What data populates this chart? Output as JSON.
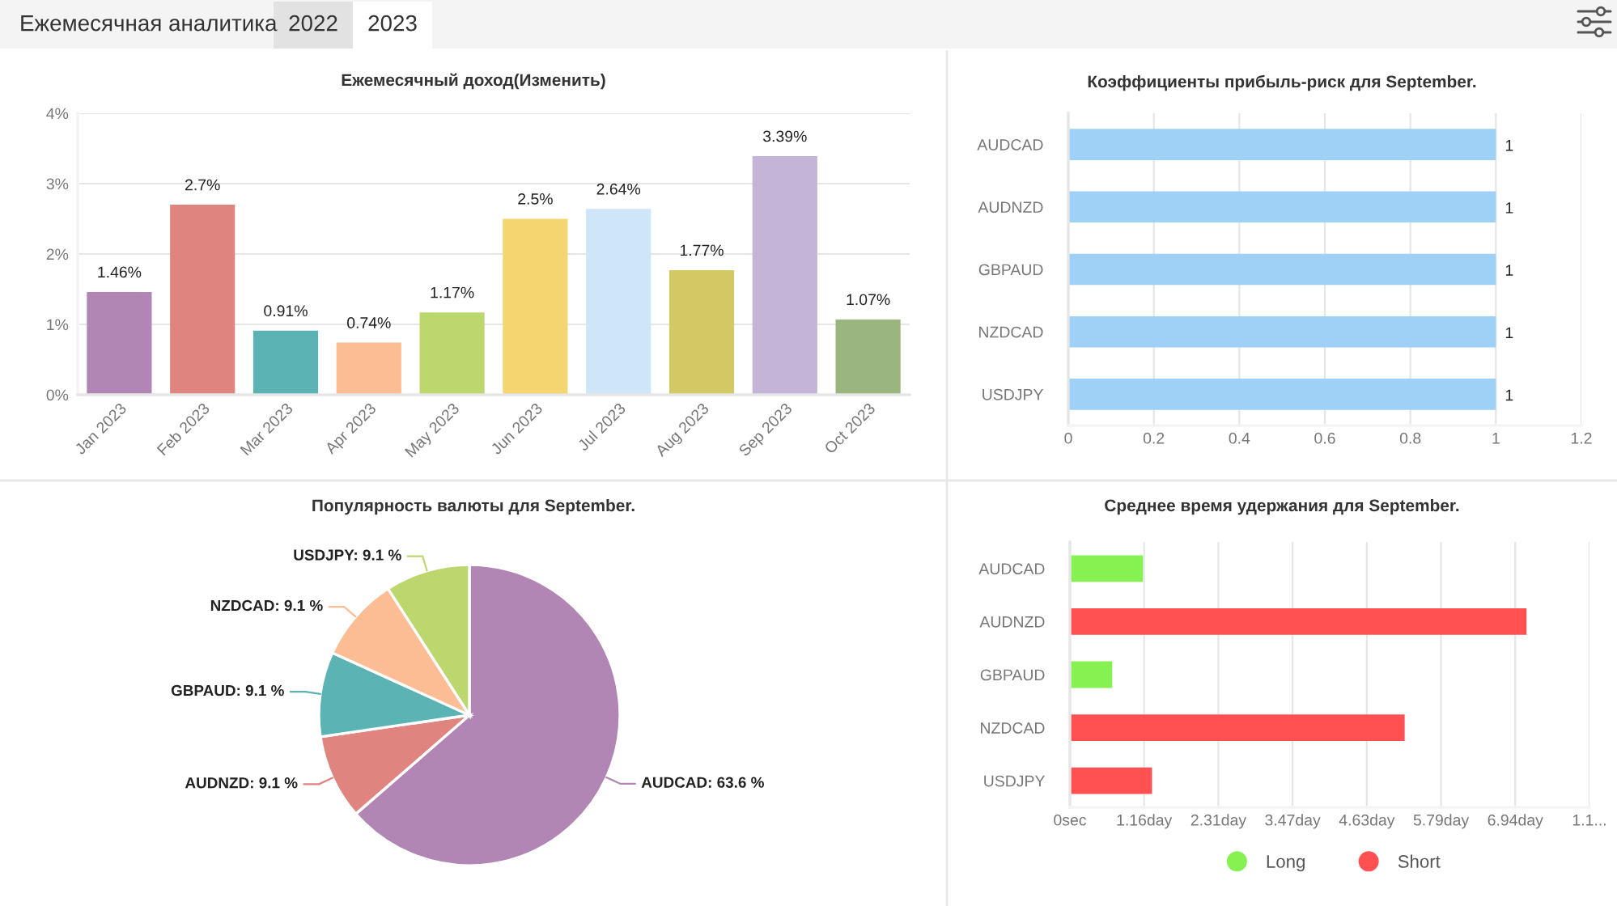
{
  "chart_data": [
    {
      "type": "other",
      "annotations": [
        "Ежемесячная аналитика",
        "2022",
        "2023"
      ]
    },
    {
      "type": "bar",
      "title": "Ежемесячный доход(Изменить)",
      "categories": [
        "Jan 2023",
        "Feb 2023",
        "Mar 2023",
        "Apr 2023",
        "May 2023",
        "Jun 2023",
        "Jul 2023",
        "Aug 2023",
        "Sep 2023",
        "Oct 2023"
      ],
      "values": [
        1.46,
        2.7,
        0.91,
        0.74,
        1.17,
        2.5,
        2.64,
        1.77,
        3.39,
        1.07
      ],
      "colors": [
        "#b286b4",
        "#e08480",
        "#5bb3b3",
        "#fdbd94",
        "#bcd76d",
        "#f5d570",
        "#cfe5f8",
        "#d2c864",
        "#c4b4d8",
        "#9ab57d"
      ],
      "value_labels": [
        "1.46%",
        "2.7%",
        "0.91%",
        "0.74%",
        "1.17%",
        "2.5%",
        "2.64%",
        "1.77%",
        "3.39%",
        "1.07%"
      ],
      "ylim": [
        0,
        4
      ],
      "yticks": [
        {
          "value": 0,
          "label": "0%"
        },
        {
          "value": 1,
          "label": "1%"
        },
        {
          "value": 2,
          "label": "2%"
        },
        {
          "value": 3,
          "label": "3%"
        },
        {
          "value": 4,
          "label": "4%"
        }
      ],
      "grid": "y"
    },
    {
      "type": "bar",
      "title": "Коэффициенты прибыль-риск для September.",
      "orientation": "horizontal",
      "categories": [
        "AUDCAD",
        "AUDNZD",
        "GBPAUD",
        "NZDCAD",
        "USDJPY"
      ],
      "values": [
        1,
        1,
        1,
        1,
        1
      ],
      "color": "#9fd0f5",
      "xlim": [
        0,
        1.2
      ],
      "xticks": [
        0,
        0.2,
        0.4,
        0.6,
        0.8,
        1,
        1.2
      ],
      "data_labels": true,
      "grid": "x"
    },
    {
      "type": "pie",
      "title": "Популярность валюты для September.",
      "categories": [
        "AUDCAD: 63.6 %",
        "AUDNZD: 9.1 %",
        "GBPAUD: 9.1 %",
        "NZDCAD: 9.1 %",
        "USDJPY: 9.1 %"
      ],
      "values": [
        63.6,
        9.1,
        9.1,
        9.1,
        9.1
      ],
      "colors": [
        "#b286b4",
        "#e08480",
        "#5bb3b3",
        "#fdbd94",
        "#bcd76d"
      ]
    },
    {
      "type": "bar",
      "title": "Среднее время удержания для September.",
      "orientation": "horizontal",
      "stacked": true,
      "categories": [
        "AUDCAD",
        "AUDNZD",
        "GBPAUD",
        "NZDCAD",
        "USDJPY"
      ],
      "series": [
        {
          "name": "Long",
          "color": "#86f252",
          "values": [
            1.14,
            null,
            0.66,
            null,
            null
          ]
        },
        {
          "name": "Short",
          "color": "#ff5052",
          "values": [
            null,
            7.12,
            null,
            5.22,
            1.28
          ]
        }
      ],
      "xlim": [
        0,
        8.102
      ],
      "xticks": [
        {
          "value": 0,
          "label": "0sec"
        },
        {
          "value": 1.157,
          "label": "1.16day"
        },
        {
          "value": 2.315,
          "label": "2.31day"
        },
        {
          "value": 3.472,
          "label": "3.47day"
        },
        {
          "value": 4.63,
          "label": "4.63day"
        },
        {
          "value": 5.787,
          "label": "5.79day"
        },
        {
          "value": 6.944,
          "label": "6.94day"
        },
        {
          "value": 8.102,
          "label": "1.1..."
        }
      ],
      "grid": "x",
      "legend": "bottom"
    }
  ]
}
